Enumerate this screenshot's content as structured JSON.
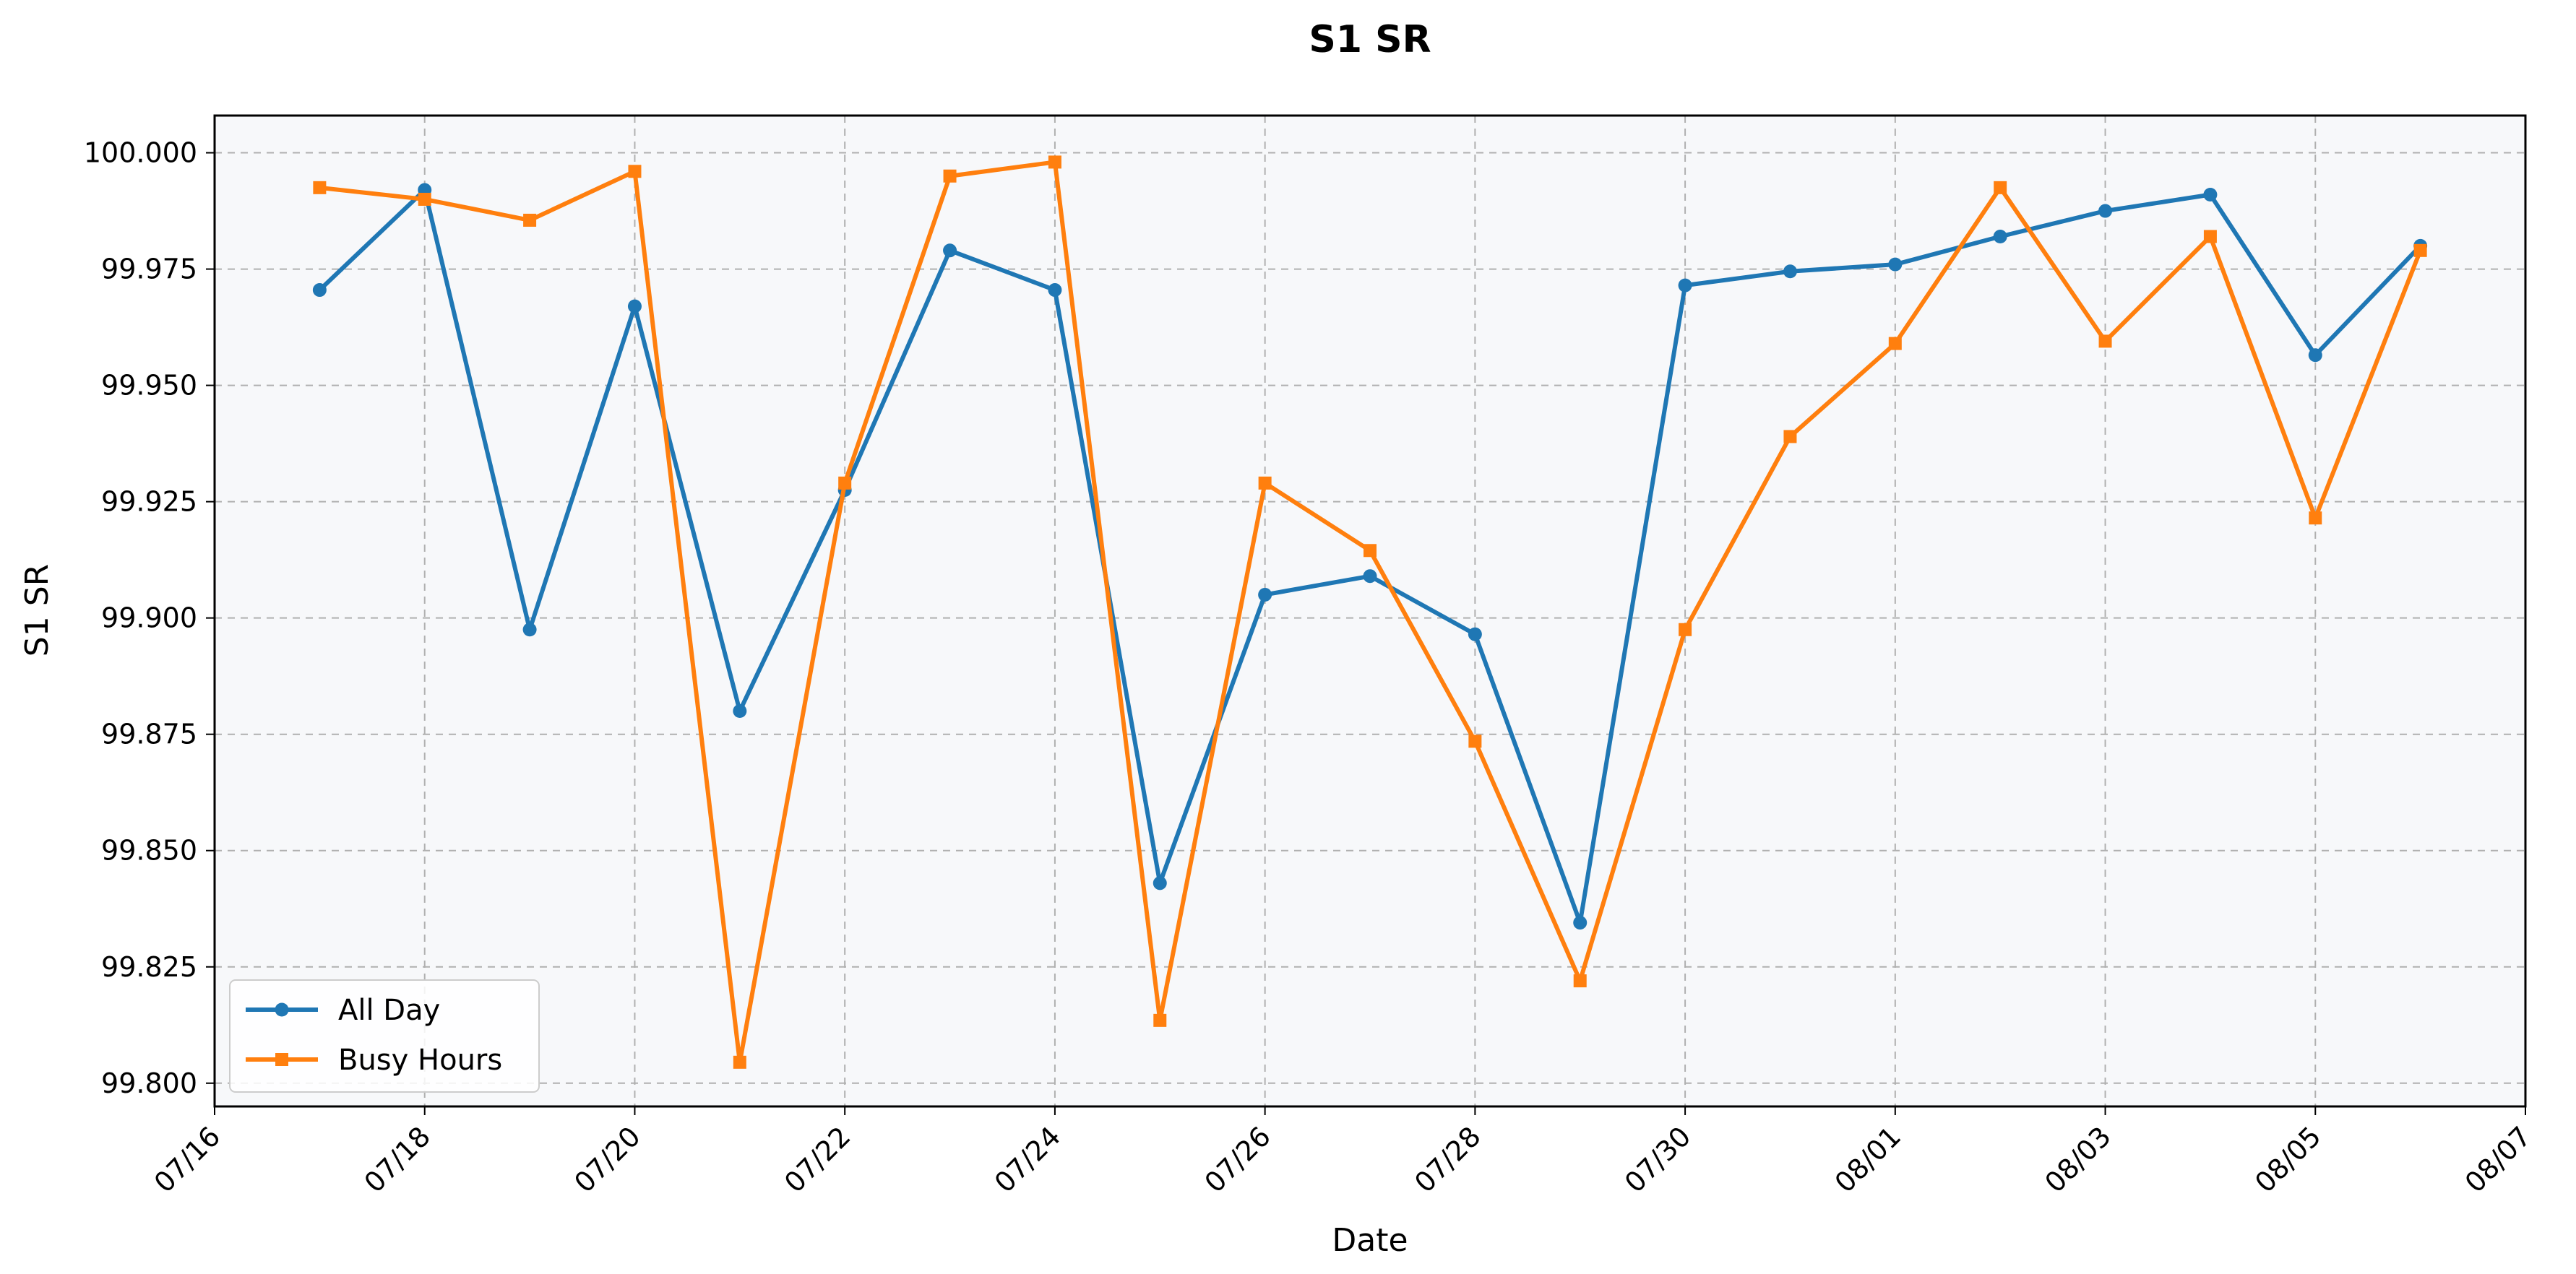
{
  "chart_data": {
    "type": "line",
    "title": "S1 SR",
    "xlabel": "Date",
    "ylabel": "S1 SR",
    "x": [
      "07/17",
      "07/18",
      "07/19",
      "07/20",
      "07/21",
      "07/22",
      "07/23",
      "07/24",
      "07/25",
      "07/26",
      "07/27",
      "07/28",
      "07/29",
      "07/30",
      "07/31",
      "08/01",
      "08/02",
      "08/03",
      "08/04",
      "08/05",
      "08/06"
    ],
    "series": [
      {
        "name": "All Day",
        "color": "#1f77b4",
        "marker": "circle",
        "values": [
          99.9705,
          99.992,
          99.8975,
          99.967,
          99.88,
          99.9275,
          99.979,
          99.9705,
          99.843,
          99.905,
          99.909,
          99.8965,
          99.8345,
          99.9715,
          99.9745,
          99.976,
          99.982,
          99.9875,
          99.991,
          99.9565,
          99.98
        ]
      },
      {
        "name": "Busy Hours",
        "color": "#ff7f0e",
        "marker": "square",
        "values": [
          99.9925,
          99.99,
          99.9855,
          99.996,
          99.8045,
          99.929,
          99.995,
          99.998,
          99.8135,
          99.929,
          99.9145,
          99.8735,
          99.822,
          99.8975,
          99.939,
          99.959,
          99.9925,
          99.9595,
          99.982,
          99.9215,
          99.979
        ]
      }
    ],
    "x_ticks": [
      "07/16",
      "07/18",
      "07/20",
      "07/22",
      "07/24",
      "07/26",
      "07/28",
      "07/30",
      "08/01",
      "08/03",
      "08/05",
      "08/07"
    ],
    "y_ticks": [
      "99.800",
      "99.825",
      "99.850",
      "99.875",
      "99.900",
      "99.925",
      "99.950",
      "99.975",
      "100.000"
    ],
    "xlim": [
      "07/16",
      "08/07"
    ],
    "ylim": [
      99.795,
      100.008
    ],
    "grid": true,
    "legend_position": "lower-left",
    "plot_background": "#f7f8fa"
  }
}
